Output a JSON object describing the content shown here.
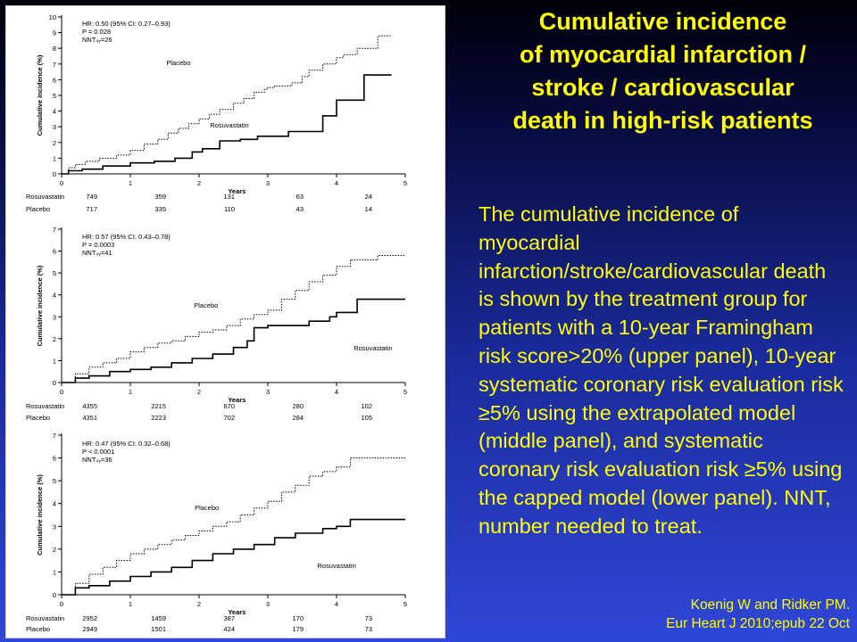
{
  "slide": {
    "title_lines": [
      "Cumulative incidence",
      "of myocardial infarction /",
      "stroke / cardiovascular",
      "death in high-risk patients"
    ],
    "body": "The cumulative incidence of myocardial infarction/stroke/cardiovascular death is shown by the treatment group for patients with a 10-year Framingham risk score>20% (upper panel), 10-year systematic coronary risk evaluation risk ≥5% using the extrapolated model (middle panel), and systematic coronary risk evaluation risk ≥5% using the capped model (lower panel). NNT, number needed to treat.",
    "citation_lines": [
      "Koenig W and Ridker PM.",
      "Eur Heart J 2010;epub 22 Oct"
    ]
  },
  "colors": {
    "title": "#ffff00",
    "background_top": "#000008",
    "background_bottom": "#2f47d8",
    "figure_bg": "#ffffff"
  },
  "chart_data": [
    {
      "type": "line",
      "ylabel": "Cumulative incidence (%)",
      "xlabel": "Years",
      "xlim": [
        0,
        5
      ],
      "ylim": [
        0,
        10
      ],
      "xticks": [
        0,
        1,
        2,
        3,
        4,
        5
      ],
      "yticks": [
        0,
        1,
        2,
        3,
        4,
        5,
        6,
        7,
        8,
        9,
        10
      ],
      "stats": [
        "HR: 0.50 (95% CI: 0.27–0.93)",
        "P = 0.028",
        "NNT₄ᵧ=26"
      ],
      "series": [
        {
          "name": "Placebo",
          "style": "dotted",
          "x": [
            0,
            0.1,
            0.2,
            0.35,
            0.55,
            0.8,
            1.0,
            1.2,
            1.4,
            1.55,
            1.7,
            1.85,
            2.0,
            2.15,
            2.3,
            2.5,
            2.65,
            2.8,
            2.95,
            3.0,
            3.1,
            3.35,
            3.5,
            3.6,
            3.8,
            4.0,
            4.1,
            4.3,
            4.6,
            4.8
          ],
          "y": [
            0,
            0.4,
            0.6,
            0.8,
            1.0,
            1.2,
            1.5,
            1.9,
            2.2,
            2.6,
            2.9,
            3.2,
            3.5,
            3.8,
            4.1,
            4.5,
            4.8,
            5.2,
            5.4,
            5.5,
            5.6,
            5.8,
            6.2,
            6.6,
            7.0,
            7.4,
            7.6,
            8.0,
            8.8,
            8.8
          ]
        },
        {
          "name": "Rosuvastatin",
          "style": "solid",
          "x": [
            0,
            0.1,
            0.3,
            0.6,
            1.0,
            1.35,
            1.65,
            1.9,
            2.05,
            2.3,
            2.6,
            2.85,
            3.3,
            3.8,
            4.0,
            4.4,
            4.8
          ],
          "y": [
            0,
            0.2,
            0.3,
            0.5,
            0.7,
            0.8,
            1.0,
            1.4,
            1.6,
            2.1,
            2.2,
            2.4,
            2.7,
            3.7,
            4.7,
            6.3,
            6.3
          ]
        }
      ],
      "risk_table": {
        "rows": [
          {
            "label": "Rosuvastatin",
            "values": [
              "749",
              "359",
              "131",
              "63",
              "24"
            ]
          },
          {
            "label": "Placebo",
            "values": [
              "717",
              "335",
              "110",
              "43",
              "14"
            ]
          }
        ]
      }
    },
    {
      "type": "line",
      "ylabel": "Cumulative incidence (%)",
      "xlabel": "Years",
      "xlim": [
        0,
        5
      ],
      "ylim": [
        0,
        7
      ],
      "xticks": [
        0,
        1,
        2,
        3,
        4,
        5
      ],
      "yticks": [
        0,
        1,
        2,
        3,
        4,
        5,
        6,
        7
      ],
      "stats": [
        "HR: 0.57 (95% CI: 0.43–0.78)",
        "P = 0.0003",
        "NNT₄ᵧ=41"
      ],
      "series": [
        {
          "name": "Placebo",
          "style": "dotted",
          "x": [
            0,
            0.2,
            0.4,
            0.6,
            0.8,
            1.0,
            1.2,
            1.4,
            1.6,
            1.8,
            2.0,
            2.2,
            2.4,
            2.6,
            2.8,
            3.0,
            3.2,
            3.4,
            3.6,
            3.8,
            4.0,
            4.2,
            4.6,
            4.8,
            5.0
          ],
          "y": [
            0,
            0.4,
            0.7,
            0.9,
            1.1,
            1.4,
            1.6,
            1.8,
            1.9,
            2.1,
            2.3,
            2.4,
            2.6,
            2.9,
            3.1,
            3.3,
            3.8,
            4.2,
            4.6,
            4.9,
            5.3,
            5.6,
            5.8,
            5.8,
            5.8
          ]
        },
        {
          "name": "Rosuvastatin",
          "style": "solid",
          "x": [
            0,
            0.2,
            0.4,
            0.7,
            1.0,
            1.3,
            1.6,
            1.9,
            2.2,
            2.5,
            2.7,
            2.8,
            3.0,
            3.3,
            3.6,
            3.9,
            4.0,
            4.3,
            4.6,
            5.0
          ],
          "y": [
            0,
            0.2,
            0.3,
            0.5,
            0.6,
            0.7,
            0.9,
            1.1,
            1.3,
            1.6,
            1.9,
            2.5,
            2.6,
            2.6,
            2.8,
            3.0,
            3.2,
            3.8,
            3.8,
            3.8
          ]
        }
      ],
      "risk_table": {
        "rows": [
          {
            "label": "Rosuvastatin",
            "values": [
              "4355",
              "2215",
              "670",
              "280",
              "102"
            ]
          },
          {
            "label": "Placebo",
            "values": [
              "4351",
              "2223",
              "702",
              "284",
              "105"
            ]
          }
        ]
      }
    },
    {
      "type": "line",
      "ylabel": "Cumulative incidence (%)",
      "xlabel": "Years",
      "xlim": [
        0,
        5
      ],
      "ylim": [
        0,
        7
      ],
      "xticks": [
        0,
        1,
        2,
        3,
        4,
        5
      ],
      "yticks": [
        0,
        1,
        2,
        3,
        4,
        5,
        6,
        7
      ],
      "stats": [
        "HR: 0.47 (95% CI: 0.32–0.68)",
        "P < 0.0001",
        "NNT₄ᵧ=36"
      ],
      "series": [
        {
          "name": "Placebo",
          "style": "dotted",
          "x": [
            0,
            0.2,
            0.4,
            0.6,
            0.8,
            1.0,
            1.2,
            1.4,
            1.6,
            1.8,
            2.0,
            2.2,
            2.4,
            2.6,
            2.8,
            3.0,
            3.2,
            3.4,
            3.6,
            3.8,
            4.0,
            4.2,
            4.6,
            4.8,
            5.0
          ],
          "y": [
            0,
            0.5,
            0.9,
            1.2,
            1.5,
            1.8,
            2.0,
            2.2,
            2.4,
            2.6,
            2.8,
            3.0,
            3.2,
            3.5,
            3.8,
            4.1,
            4.5,
            4.8,
            5.2,
            5.4,
            5.6,
            6.0,
            6.0,
            6.0,
            6.0
          ]
        },
        {
          "name": "Rosuvastatin",
          "style": "solid",
          "x": [
            0,
            0.2,
            0.4,
            0.7,
            1.0,
            1.3,
            1.6,
            1.9,
            2.2,
            2.5,
            2.8,
            3.1,
            3.4,
            3.8,
            4.0,
            4.2,
            4.6,
            5.0
          ],
          "y": [
            0,
            0.3,
            0.4,
            0.6,
            0.8,
            1.0,
            1.2,
            1.5,
            1.8,
            2.0,
            2.2,
            2.5,
            2.7,
            2.9,
            3.0,
            3.3,
            3.3,
            3.3
          ]
        }
      ],
      "risk_table": {
        "rows": [
          {
            "label": "Rosuvastatin",
            "values": [
              "2952",
              "1459",
              "387",
              "170",
              "73"
            ]
          },
          {
            "label": "Placebo",
            "values": [
              "2949",
              "1501",
              "424",
              "179",
              "73"
            ]
          }
        ]
      }
    }
  ]
}
